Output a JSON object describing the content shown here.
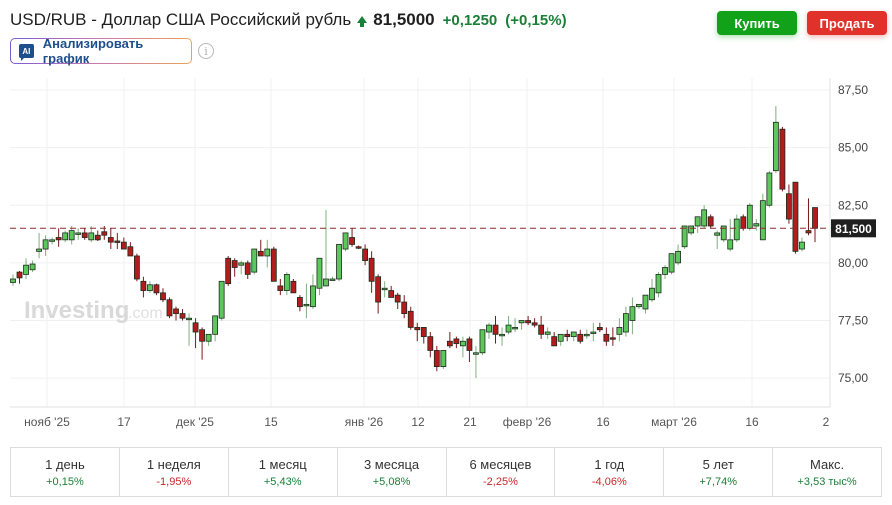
{
  "header": {
    "title": "USD/RUB - Доллар США Российский рубль",
    "price": "81,5000",
    "change": "+0,1250",
    "change_pct": "(+0,15%)",
    "direction_icon": "arrow-up-icon"
  },
  "actions": {
    "buy_label": "Купить",
    "sell_label": "Продать",
    "ai_badge": "AI",
    "ai_label": "Анализировать график",
    "info_icon": "i"
  },
  "colors": {
    "up": "#5cc85c",
    "down": "#b21c1c",
    "buy": "#12a21a",
    "sell": "#e0322a",
    "positive_text": "#1a7f37",
    "negative_text": "#c62828"
  },
  "watermark": {
    "main": "Investing",
    "suffix": ".com"
  },
  "chart_data": {
    "type": "candlestick",
    "title": "USD/RUB",
    "xlabel": "",
    "ylabel": "",
    "ylim": [
      73.5,
      88.2
    ],
    "y_ticks": [
      "87,50",
      "85,00",
      "82,50",
      "80,00",
      "77,50",
      "75,00"
    ],
    "y_tick_values": [
      87.5,
      85.0,
      82.5,
      80.0,
      77.5,
      75.0
    ],
    "x_tick_labels": [
      "нояб '25",
      "17",
      "дек '25",
      "15",
      "янв '26",
      "12",
      "21",
      "февр '26",
      "16",
      "март '26",
      "16",
      "2"
    ],
    "current_price_label": "81,500",
    "current_price": 81.5,
    "grid": true,
    "candles": [
      {
        "o": 79.15,
        "h": 79.5,
        "l": 79.0,
        "c": 79.3
      },
      {
        "o": 79.6,
        "h": 79.65,
        "l": 79.1,
        "c": 79.35
      },
      {
        "o": 79.5,
        "h": 80.2,
        "l": 79.3,
        "c": 79.9
      },
      {
        "o": 79.7,
        "h": 80.1,
        "l": 79.6,
        "c": 79.95
      },
      {
        "o": 80.5,
        "h": 81.3,
        "l": 80.2,
        "c": 80.6
      },
      {
        "o": 80.6,
        "h": 81.2,
        "l": 80.3,
        "c": 81.0
      },
      {
        "o": 81.0,
        "h": 81.1,
        "l": 80.8,
        "c": 81.0
      },
      {
        "o": 81.1,
        "h": 81.5,
        "l": 80.7,
        "c": 81.0
      },
      {
        "o": 81.0,
        "h": 81.4,
        "l": 80.9,
        "c": 81.3
      },
      {
        "o": 81.0,
        "h": 81.6,
        "l": 80.8,
        "c": 81.4
      },
      {
        "o": 81.3,
        "h": 81.5,
        "l": 81.0,
        "c": 81.3
      },
      {
        "o": 81.3,
        "h": 81.5,
        "l": 81.0,
        "c": 81.1
      },
      {
        "o": 81.0,
        "h": 81.6,
        "l": 80.9,
        "c": 81.3
      },
      {
        "o": 81.2,
        "h": 81.4,
        "l": 80.95,
        "c": 81.0
      },
      {
        "o": 81.35,
        "h": 81.6,
        "l": 81.0,
        "c": 81.2
      },
      {
        "o": 81.1,
        "h": 81.5,
        "l": 80.6,
        "c": 80.9
      },
      {
        "o": 80.95,
        "h": 81.3,
        "l": 80.6,
        "c": 80.9
      },
      {
        "o": 80.9,
        "h": 81.1,
        "l": 80.7,
        "c": 80.6
      },
      {
        "o": 80.7,
        "h": 80.9,
        "l": 80.4,
        "c": 80.3
      },
      {
        "o": 80.3,
        "h": 80.4,
        "l": 79.2,
        "c": 79.3
      },
      {
        "o": 79.2,
        "h": 79.4,
        "l": 78.5,
        "c": 78.8
      },
      {
        "o": 78.8,
        "h": 79.2,
        "l": 78.7,
        "c": 79.05
      },
      {
        "o": 79.05,
        "h": 79.1,
        "l": 78.6,
        "c": 78.7
      },
      {
        "o": 78.7,
        "h": 78.9,
        "l": 78.3,
        "c": 78.4
      },
      {
        "o": 78.4,
        "h": 78.5,
        "l": 77.6,
        "c": 77.7
      },
      {
        "o": 78.0,
        "h": 78.1,
        "l": 77.5,
        "c": 77.8
      },
      {
        "o": 77.8,
        "h": 78.0,
        "l": 77.5,
        "c": 77.6
      },
      {
        "o": 77.6,
        "h": 77.8,
        "l": 76.4,
        "c": 77.6
      },
      {
        "o": 77.4,
        "h": 77.6,
        "l": 76.3,
        "c": 77.0
      },
      {
        "o": 77.1,
        "h": 77.2,
        "l": 75.8,
        "c": 76.6
      },
      {
        "o": 76.6,
        "h": 76.9,
        "l": 76.4,
        "c": 76.9
      },
      {
        "o": 76.9,
        "h": 77.1,
        "l": 76.6,
        "c": 77.7
      },
      {
        "o": 77.6,
        "h": 79.2,
        "l": 77.5,
        "c": 79.2
      },
      {
        "o": 80.2,
        "h": 80.3,
        "l": 79.0,
        "c": 79.1
      },
      {
        "o": 80.1,
        "h": 80.2,
        "l": 79.4,
        "c": 79.8
      },
      {
        "o": 79.9,
        "h": 80.1,
        "l": 79.5,
        "c": 80.0
      },
      {
        "o": 80.0,
        "h": 80.1,
        "l": 79.3,
        "c": 79.5
      },
      {
        "o": 79.6,
        "h": 80.3,
        "l": 79.5,
        "c": 80.6
      },
      {
        "o": 80.5,
        "h": 81.0,
        "l": 80.3,
        "c": 80.3
      },
      {
        "o": 80.3,
        "h": 81.0,
        "l": 79.8,
        "c": 80.6
      },
      {
        "o": 80.6,
        "h": 80.7,
        "l": 79.2,
        "c": 79.2
      },
      {
        "o": 79.0,
        "h": 79.3,
        "l": 78.6,
        "c": 78.8
      },
      {
        "o": 78.8,
        "h": 79.6,
        "l": 78.6,
        "c": 79.5
      },
      {
        "o": 79.2,
        "h": 79.3,
        "l": 78.7,
        "c": 78.7
      },
      {
        "o": 78.5,
        "h": 78.6,
        "l": 77.9,
        "c": 78.1
      },
      {
        "o": 78.2,
        "h": 79.1,
        "l": 77.6,
        "c": 78.2
      },
      {
        "o": 78.1,
        "h": 79.5,
        "l": 78.0,
        "c": 79.0
      },
      {
        "o": 78.9,
        "h": 79.7,
        "l": 78.6,
        "c": 80.2
      },
      {
        "o": 79.0,
        "h": 82.3,
        "l": 79.0,
        "c": 79.3
      },
      {
        "o": 79.3,
        "h": 79.4,
        "l": 79.3,
        "c": 79.3
      },
      {
        "o": 79.3,
        "h": 80.8,
        "l": 79.2,
        "c": 80.8
      },
      {
        "o": 80.6,
        "h": 81.3,
        "l": 80.5,
        "c": 81.3
      },
      {
        "o": 81.1,
        "h": 81.5,
        "l": 80.7,
        "c": 80.8
      },
      {
        "o": 80.7,
        "h": 80.75,
        "l": 80.6,
        "c": 80.65
      },
      {
        "o": 80.6,
        "h": 80.8,
        "l": 79.9,
        "c": 80.1
      },
      {
        "o": 80.2,
        "h": 80.5,
        "l": 78.7,
        "c": 79.2
      },
      {
        "o": 79.4,
        "h": 79.5,
        "l": 77.8,
        "c": 78.3
      },
      {
        "o": 78.9,
        "h": 79.2,
        "l": 78.5,
        "c": 78.9
      },
      {
        "o": 78.8,
        "h": 79.0,
        "l": 78.5,
        "c": 78.5
      },
      {
        "o": 78.6,
        "h": 78.7,
        "l": 78.0,
        "c": 78.3
      },
      {
        "o": 78.3,
        "h": 78.6,
        "l": 77.6,
        "c": 77.8
      },
      {
        "o": 77.9,
        "h": 78.1,
        "l": 77.1,
        "c": 77.2
      },
      {
        "o": 77.2,
        "h": 77.4,
        "l": 76.6,
        "c": 77.1
      },
      {
        "o": 77.2,
        "h": 77.2,
        "l": 76.5,
        "c": 76.8
      },
      {
        "o": 76.8,
        "h": 77.0,
        "l": 75.9,
        "c": 76.2
      },
      {
        "o": 76.2,
        "h": 76.4,
        "l": 75.3,
        "c": 75.5
      },
      {
        "o": 75.5,
        "h": 75.6,
        "l": 75.4,
        "c": 76.2
      },
      {
        "o": 76.6,
        "h": 77.0,
        "l": 76.3,
        "c": 76.4
      },
      {
        "o": 76.7,
        "h": 76.8,
        "l": 76.3,
        "c": 76.5
      },
      {
        "o": 76.4,
        "h": 76.8,
        "l": 75.9,
        "c": 76.6
      },
      {
        "o": 76.7,
        "h": 76.8,
        "l": 75.7,
        "c": 76.2
      },
      {
        "o": 76.1,
        "h": 76.4,
        "l": 75.0,
        "c": 76.1
      },
      {
        "o": 76.1,
        "h": 77.1,
        "l": 76.0,
        "c": 77.1
      },
      {
        "o": 77.0,
        "h": 77.4,
        "l": 76.7,
        "c": 77.3
      },
      {
        "o": 77.3,
        "h": 77.7,
        "l": 76.5,
        "c": 76.9
      },
      {
        "o": 76.9,
        "h": 77.2,
        "l": 76.4,
        "c": 76.9
      },
      {
        "o": 77.0,
        "h": 77.7,
        "l": 76.9,
        "c": 77.3
      },
      {
        "o": 77.2,
        "h": 77.6,
        "l": 77.0,
        "c": 77.2
      },
      {
        "o": 77.4,
        "h": 77.5,
        "l": 77.1,
        "c": 77.5
      },
      {
        "o": 77.5,
        "h": 77.7,
        "l": 77.3,
        "c": 77.4
      },
      {
        "o": 77.4,
        "h": 77.6,
        "l": 77.2,
        "c": 77.3
      },
      {
        "o": 77.3,
        "h": 77.7,
        "l": 76.7,
        "c": 76.9
      },
      {
        "o": 76.9,
        "h": 77.2,
        "l": 76.7,
        "c": 77.0
      },
      {
        "o": 76.8,
        "h": 77.0,
        "l": 76.4,
        "c": 76.4
      },
      {
        "o": 76.6,
        "h": 76.9,
        "l": 76.4,
        "c": 76.9
      },
      {
        "o": 76.9,
        "h": 77.1,
        "l": 76.6,
        "c": 76.8
      },
      {
        "o": 76.8,
        "h": 77.0,
        "l": 76.6,
        "c": 77.0
      },
      {
        "o": 76.9,
        "h": 77.1,
        "l": 76.5,
        "c": 76.6
      },
      {
        "o": 76.9,
        "h": 77.1,
        "l": 76.7,
        "c": 76.9
      },
      {
        "o": 77.0,
        "h": 77.4,
        "l": 76.6,
        "c": 77.0
      },
      {
        "o": 77.2,
        "h": 77.4,
        "l": 77.0,
        "c": 77.1
      },
      {
        "o": 76.9,
        "h": 77.2,
        "l": 76.4,
        "c": 76.6
      },
      {
        "o": 76.75,
        "h": 77.2,
        "l": 76.4,
        "c": 76.7
      },
      {
        "o": 76.9,
        "h": 77.6,
        "l": 76.6,
        "c": 77.2
      },
      {
        "o": 77.0,
        "h": 78.1,
        "l": 76.8,
        "c": 77.8
      },
      {
        "o": 77.5,
        "h": 78.5,
        "l": 76.9,
        "c": 78.1
      },
      {
        "o": 78.1,
        "h": 78.2,
        "l": 78.0,
        "c": 78.2
      },
      {
        "o": 78.0,
        "h": 78.6,
        "l": 77.8,
        "c": 78.6
      },
      {
        "o": 78.4,
        "h": 79.3,
        "l": 78.3,
        "c": 78.9
      },
      {
        "o": 78.7,
        "h": 79.6,
        "l": 78.5,
        "c": 79.5
      },
      {
        "o": 79.5,
        "h": 79.9,
        "l": 79.3,
        "c": 79.8
      },
      {
        "o": 79.6,
        "h": 80.4,
        "l": 79.5,
        "c": 80.4
      },
      {
        "o": 80.0,
        "h": 80.8,
        "l": 79.9,
        "c": 80.5
      },
      {
        "o": 80.7,
        "h": 81.6,
        "l": 80.6,
        "c": 81.6
      },
      {
        "o": 81.3,
        "h": 81.6,
        "l": 81.2,
        "c": 81.6
      },
      {
        "o": 81.6,
        "h": 82.0,
        "l": 81.3,
        "c": 82.0
      },
      {
        "o": 81.6,
        "h": 82.5,
        "l": 81.5,
        "c": 82.3
      },
      {
        "o": 82.0,
        "h": 82.1,
        "l": 81.5,
        "c": 81.6
      },
      {
        "o": 81.2,
        "h": 81.4,
        "l": 80.6,
        "c": 81.3
      },
      {
        "o": 81.0,
        "h": 81.6,
        "l": 80.9,
        "c": 81.6
      },
      {
        "o": 80.6,
        "h": 81.9,
        "l": 80.5,
        "c": 81.0
      },
      {
        "o": 81.0,
        "h": 82.1,
        "l": 80.9,
        "c": 81.9
      },
      {
        "o": 82.0,
        "h": 82.1,
        "l": 81.4,
        "c": 81.5
      },
      {
        "o": 81.5,
        "h": 82.6,
        "l": 81.4,
        "c": 82.5
      },
      {
        "o": 81.6,
        "h": 81.9,
        "l": 81.4,
        "c": 81.7
      },
      {
        "o": 81.0,
        "h": 83.0,
        "l": 81.0,
        "c": 82.7
      },
      {
        "o": 82.5,
        "h": 84.0,
        "l": 82.4,
        "c": 83.9
      },
      {
        "o": 84.0,
        "h": 86.8,
        "l": 83.9,
        "c": 86.1
      },
      {
        "o": 85.8,
        "h": 85.9,
        "l": 83.1,
        "c": 83.2
      },
      {
        "o": 83.0,
        "h": 83.4,
        "l": 81.7,
        "c": 81.9
      },
      {
        "o": 83.5,
        "h": 83.5,
        "l": 80.4,
        "c": 80.5
      },
      {
        "o": 80.6,
        "h": 81.1,
        "l": 80.5,
        "c": 80.9
      },
      {
        "o": 81.4,
        "h": 82.8,
        "l": 81.2,
        "c": 81.3
      },
      {
        "o": 82.4,
        "h": 82.4,
        "l": 80.9,
        "c": 81.5
      }
    ]
  },
  "periods": [
    {
      "label": "1 день",
      "value": "+0,15%",
      "sign": "pos"
    },
    {
      "label": "1 неделя",
      "value": "-1,95%",
      "sign": "neg"
    },
    {
      "label": "1 месяц",
      "value": "+5,43%",
      "sign": "pos"
    },
    {
      "label": "3 месяца",
      "value": "+5,08%",
      "sign": "pos"
    },
    {
      "label": "6 месяцев",
      "value": "-2,25%",
      "sign": "neg"
    },
    {
      "label": "1 год",
      "value": "-4,06%",
      "sign": "neg"
    },
    {
      "label": "5 лет",
      "value": "+7,74%",
      "sign": "pos"
    },
    {
      "label": "Макс.",
      "value": "+3,53 тыс%",
      "sign": "pos"
    }
  ]
}
